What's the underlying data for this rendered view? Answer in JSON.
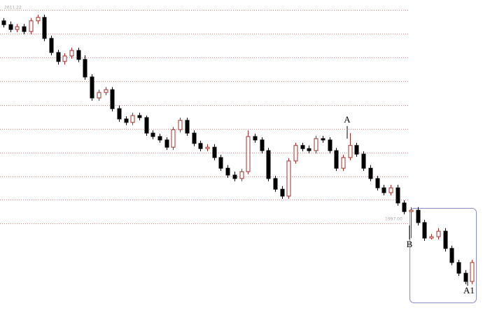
{
  "chart_data": {
    "type": "candlestick",
    "open": [
      2575,
      2564,
      2550,
      2558,
      2544,
      2575,
      2585,
      2524,
      2483,
      2457,
      2473,
      2489,
      2463,
      2412,
      2351,
      2367,
      2375,
      2320,
      2290,
      2280,
      2300,
      2294,
      2249,
      2239,
      2229,
      2208,
      2259,
      2286,
      2249,
      2219,
      2204,
      2208,
      2178,
      2147,
      2127,
      2117,
      2137,
      2239,
      2229,
      2198,
      2117,
      2086,
      2066,
      2168,
      2213,
      2204,
      2198,
      2233,
      2229,
      2198,
      2147,
      2178,
      2213,
      2188,
      2147,
      2117,
      2090,
      2076,
      2090,
      2046,
      2021,
      2025,
      1989,
      1944,
      1948,
      1964,
      1914,
      1873,
      1842,
      1818
    ],
    "high": [
      2583,
      2573,
      2566,
      2566,
      2583,
      2593,
      2593,
      2532,
      2491,
      2481,
      2497,
      2497,
      2475,
      2420,
      2375,
      2383,
      2383,
      2329,
      2298,
      2308,
      2308,
      2300,
      2257,
      2247,
      2237,
      2267,
      2294,
      2294,
      2257,
      2227,
      2217,
      2217,
      2186,
      2156,
      2137,
      2145,
      2257,
      2247,
      2237,
      2206,
      2125,
      2095,
      2176,
      2221,
      2221,
      2213,
      2241,
      2241,
      2237,
      2206,
      2186,
      2249,
      2221,
      2196,
      2156,
      2125,
      2099,
      2099,
      2099,
      2054,
      2034,
      2034,
      1997,
      1956,
      1973,
      1973,
      1922,
      1881,
      1851,
      1881
    ],
    "low": [
      2556,
      2542,
      2542,
      2536,
      2536,
      2566,
      2516,
      2475,
      2448,
      2448,
      2465,
      2455,
      2404,
      2343,
      2343,
      2359,
      2312,
      2282,
      2272,
      2272,
      2286,
      2241,
      2231,
      2221,
      2200,
      2200,
      2251,
      2241,
      2211,
      2196,
      2196,
      2170,
      2139,
      2119,
      2109,
      2109,
      2129,
      2221,
      2190,
      2109,
      2078,
      2058,
      2058,
      2160,
      2196,
      2190,
      2190,
      2221,
      2190,
      2139,
      2139,
      2170,
      2180,
      2139,
      2109,
      2082,
      2068,
      2068,
      2038,
      2013,
      1944,
      1981,
      1936,
      1940,
      1940,
      1905,
      1865,
      1834,
      1810,
      1810
    ],
    "close": [
      2564,
      2550,
      2558,
      2544,
      2575,
      2585,
      2524,
      2483,
      2457,
      2473,
      2489,
      2463,
      2412,
      2351,
      2367,
      2375,
      2320,
      2290,
      2280,
      2300,
      2294,
      2249,
      2239,
      2229,
      2208,
      2259,
      2286,
      2249,
      2219,
      2204,
      2208,
      2178,
      2147,
      2127,
      2117,
      2137,
      2239,
      2229,
      2198,
      2117,
      2086,
      2066,
      2168,
      2213,
      2204,
      2198,
      2233,
      2229,
      2198,
      2147,
      2178,
      2213,
      2188,
      2147,
      2117,
      2090,
      2076,
      2090,
      2046,
      2021,
      2025,
      1989,
      1944,
      1948,
      1964,
      1914,
      1873,
      1842,
      1818,
      1873
    ],
    "up_color": "#a0302a",
    "down_color": "#000000",
    "ylim": [
      1726.4,
      2635.6
    ],
    "grid_levels": [
      2607,
      2538,
      2469,
      2400,
      2331,
      2262,
      2193,
      2124,
      2055,
      1986
    ],
    "grid_color": "#d98a8a",
    "price_labels": [
      2611.22,
      {
        "value": 1997,
        "label": "1997.00"
      }
    ],
    "annotations": [
      {
        "text": "A"
      },
      {
        "text": "B"
      },
      {
        "text": "A1"
      }
    ]
  }
}
